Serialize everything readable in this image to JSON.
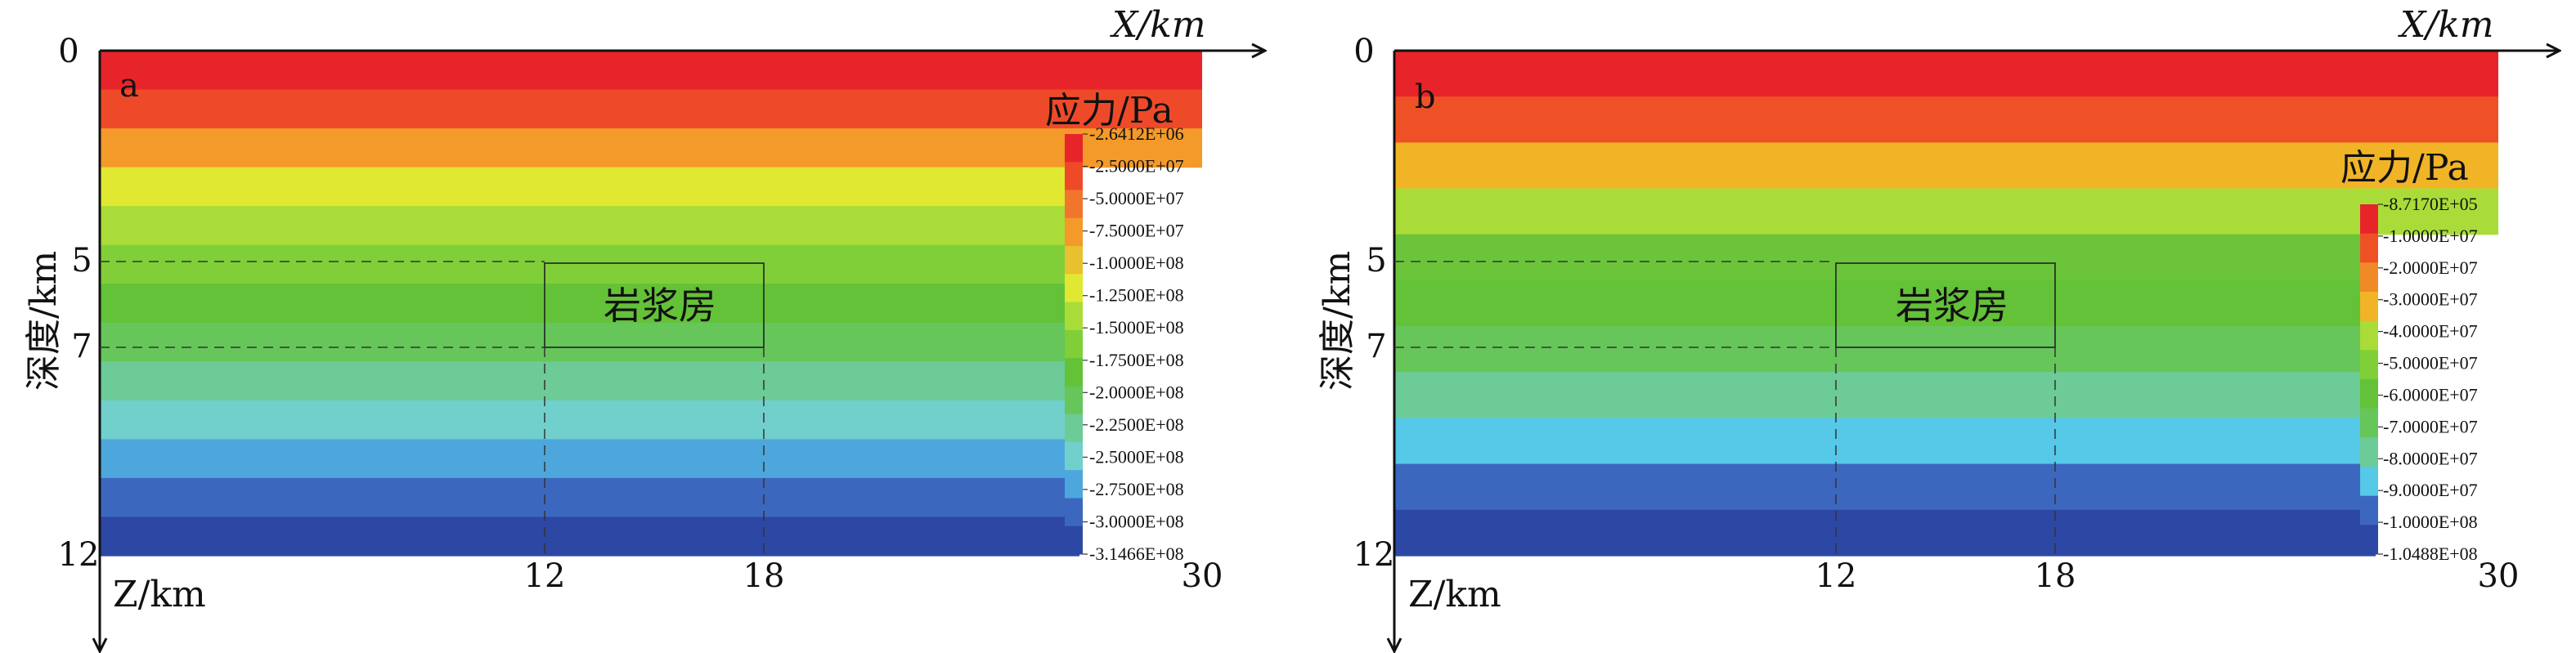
{
  "figure": {
    "panels": [
      {
        "panel_label": "a",
        "x_axis_label": "X/km",
        "z_axis_label": "Z/km",
        "depth_label": "深度/km",
        "chamber_label": "岩浆房",
        "colorbar_title": "应力/Pa",
        "x_ticks": [
          "12",
          "18",
          "30"
        ],
        "y_ticks": [
          "0",
          "5",
          "7",
          "12"
        ],
        "colorbar_labels": [
          "-2.6412E+06",
          "-2.5000E+07",
          "-5.0000E+07",
          "-7.5000E+07",
          "-1.0000E+08",
          "-1.2500E+08",
          "-1.5000E+08",
          "-1.7500E+08",
          "-2.0000E+08",
          "-2.2500E+08",
          "-2.5000E+08",
          "-2.7500E+08",
          "-3.0000E+08",
          "-3.1466E+08"
        ],
        "band_colors": [
          "#e8242b",
          "#ee4a2a",
          "#f39a2a",
          "#e1e831",
          "#a9dc38",
          "#80cf39",
          "#63c238",
          "#66c65a",
          "#6ccb96",
          "#71d0cc",
          "#4da7dc",
          "#3c67bf",
          "#2d47a5"
        ],
        "cb_colors": [
          "#e8242b",
          "#ee4a2a",
          "#f2752d",
          "#f39a2a",
          "#e9c02f",
          "#e1e831",
          "#a9dc38",
          "#80cf39",
          "#63c238",
          "#66c65a",
          "#6ccb96",
          "#71d0cc",
          "#4da7dc",
          "#3c67bf",
          "#2d47a5"
        ]
      },
      {
        "panel_label": "b",
        "x_axis_label": "X/km",
        "z_axis_label": "Z/km",
        "depth_label": "深度/km",
        "chamber_label": "岩浆房",
        "colorbar_title": "应力/Pa",
        "x_ticks": [
          "12",
          "18",
          "30"
        ],
        "y_ticks": [
          "0",
          "5",
          "7",
          "12"
        ],
        "colorbar_labels": [
          "-8.7170E+05",
          "-1.0000E+07",
          "-2.0000E+07",
          "-3.0000E+07",
          "-4.0000E+07",
          "-5.0000E+07",
          "-6.0000E+07",
          "-7.0000E+07",
          "-8.0000E+07",
          "-9.0000E+07",
          "-1.0000E+08",
          "-1.0488E+08"
        ],
        "band_colors": [
          "#e8242b",
          "#ef5127",
          "#f0b426",
          "#a9dc38",
          "#6cc43b",
          "#63c238",
          "#66c65a",
          "#6ccb96",
          "#56c8e8",
          "#3c67bf",
          "#2d47a5"
        ],
        "cb_colors": [
          "#e8242b",
          "#ef5127",
          "#f08a26",
          "#f0b426",
          "#a9dc38",
          "#80cf39",
          "#63c238",
          "#66c65a",
          "#6ccb96",
          "#56c8e8",
          "#3c67bf",
          "#2d47a5"
        ]
      }
    ]
  }
}
